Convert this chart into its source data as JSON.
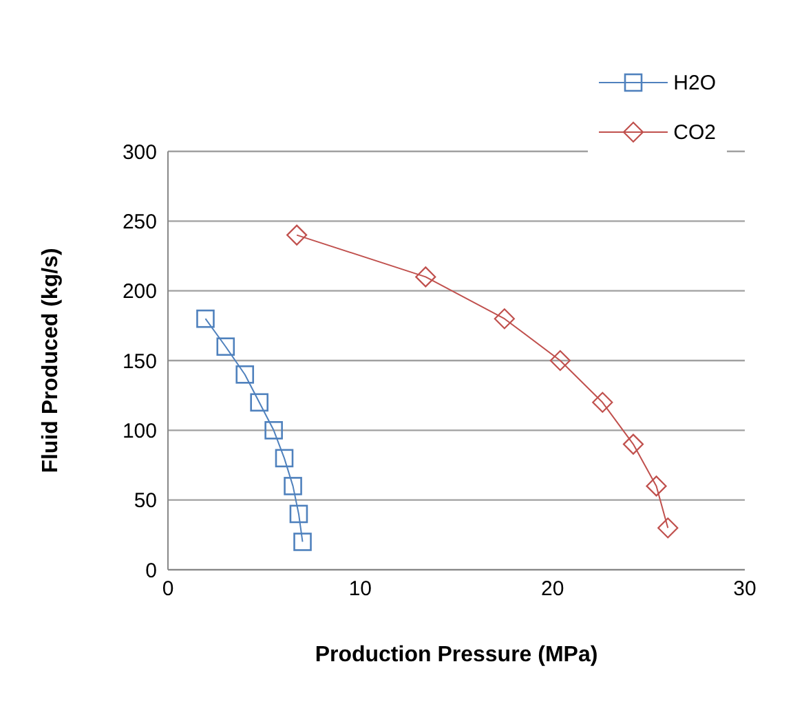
{
  "chart_data": {
    "type": "line",
    "xlabel": "Production Pressure (MPa)",
    "ylabel": "Fluid Produced (kg/s)",
    "xlim": [
      0,
      30
    ],
    "xticks": [
      0,
      10,
      20,
      30
    ],
    "ylim": [
      0,
      300
    ],
    "yticks": [
      0,
      50,
      100,
      150,
      200,
      250,
      300
    ],
    "grid": "y",
    "legend": "top right",
    "series": [
      {
        "name": "H2O",
        "color": "#4f81bd",
        "marker": "square",
        "x": [
          1.95,
          3.0,
          4.0,
          4.75,
          5.5,
          6.05,
          6.5,
          6.8,
          7.0
        ],
        "values": [
          180,
          160,
          140,
          120,
          100,
          80,
          60,
          40,
          20
        ]
      },
      {
        "name": "CO2",
        "color": "#c0504d",
        "marker": "diamond",
        "x": [
          6.7,
          13.4,
          17.5,
          20.4,
          22.6,
          24.2,
          25.4,
          26.0
        ],
        "values": [
          240,
          210,
          180,
          150,
          120,
          90,
          60,
          30
        ]
      }
    ]
  }
}
